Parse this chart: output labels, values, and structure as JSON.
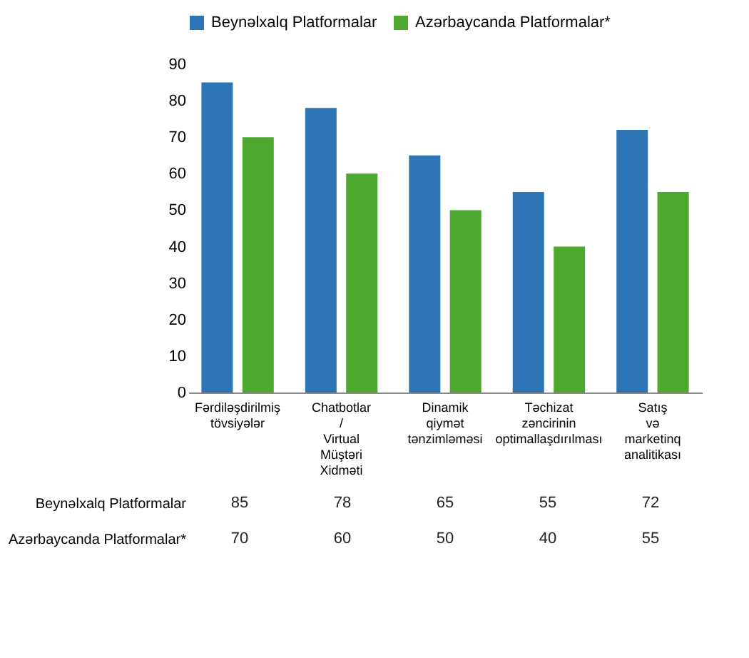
{
  "chart_data": {
    "type": "bar",
    "categories": [
      "Fərdiləşdirilmiş tövsiyələr",
      "Chatbotlar / Virtual Müştəri Xidməti",
      "Dinamik qiymət tənzimləməsi",
      "Təchizat zəncirinin optimallaşdırılması",
      "Satış və marketinq analitikası"
    ],
    "series": [
      {
        "name": "Beynəlxalq Platformalar",
        "color": "#2e75b6",
        "values": [
          85,
          78,
          65,
          55,
          72
        ]
      },
      {
        "name": "Azərbaycanda Platformalar*",
        "color": "#4ea72e",
        "values": [
          70,
          60,
          50,
          40,
          55
        ]
      }
    ],
    "ylim": [
      0,
      90
    ],
    "yticks": [
      0,
      10,
      20,
      30,
      40,
      50,
      60,
      70,
      80,
      90
    ],
    "grid": false,
    "legend": "top",
    "data_labels": true
  }
}
